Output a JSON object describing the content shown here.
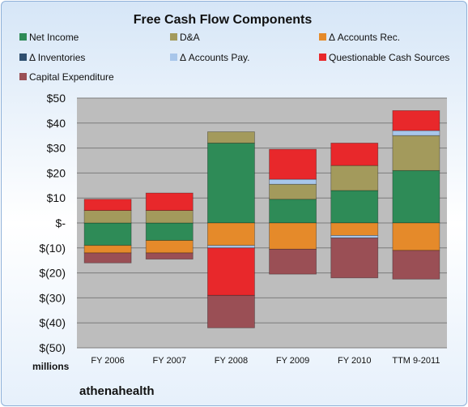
{
  "chart_data": {
    "type": "bar",
    "stacked": true,
    "title": "Free Cash Flow Components",
    "categories": [
      "FY 2006",
      "FY 2007",
      "FY 2008",
      "FY 2009",
      "FY 2010",
      "TTM 9-2011"
    ],
    "ylim": [
      -50,
      50
    ],
    "ytick_values": [
      50,
      40,
      30,
      20,
      10,
      0,
      -10,
      -20,
      -30,
      -40,
      -50
    ],
    "ytick_labels": [
      "$50",
      "$40",
      "$30",
      "$20",
      "$10",
      "$-",
      "$(10)",
      "$(20)",
      "$(30)",
      "$(40)",
      "$(50)"
    ],
    "units_label": "millions",
    "grid": true,
    "legend_position": "top",
    "series": [
      {
        "name": "Net Income",
        "color": "#2e8b57",
        "values": [
          -9,
          -7,
          32,
          9.5,
          13,
          21
        ]
      },
      {
        "name": "D&A",
        "color": "#a39a5c",
        "values": [
          5,
          5,
          4.5,
          6,
          10,
          14
        ]
      },
      {
        "name": "Δ Accounts Rec.",
        "color": "#e58a2a",
        "values": [
          -3,
          -5,
          -9,
          -10.5,
          -5,
          -11
        ]
      },
      {
        "name": "Δ Inventories",
        "color": "#2f4f6f",
        "values": [
          0,
          0,
          0,
          0,
          0,
          0
        ]
      },
      {
        "name": "Δ Accounts Pay.",
        "color": "#a8c6ea",
        "values": [
          0,
          0,
          -1,
          2,
          -1,
          2
        ]
      },
      {
        "name": "Questionable Cash Sources",
        "color": "#e8282b",
        "values": [
          4.5,
          7,
          -19,
          12,
          9,
          8
        ]
      },
      {
        "name": "Capital Expenditure",
        "color": "#9a4f55",
        "values": [
          -4,
          -2.5,
          -13,
          -10,
          -16,
          -11.5
        ]
      }
    ]
  },
  "footer": {
    "company": "athenahealth"
  }
}
